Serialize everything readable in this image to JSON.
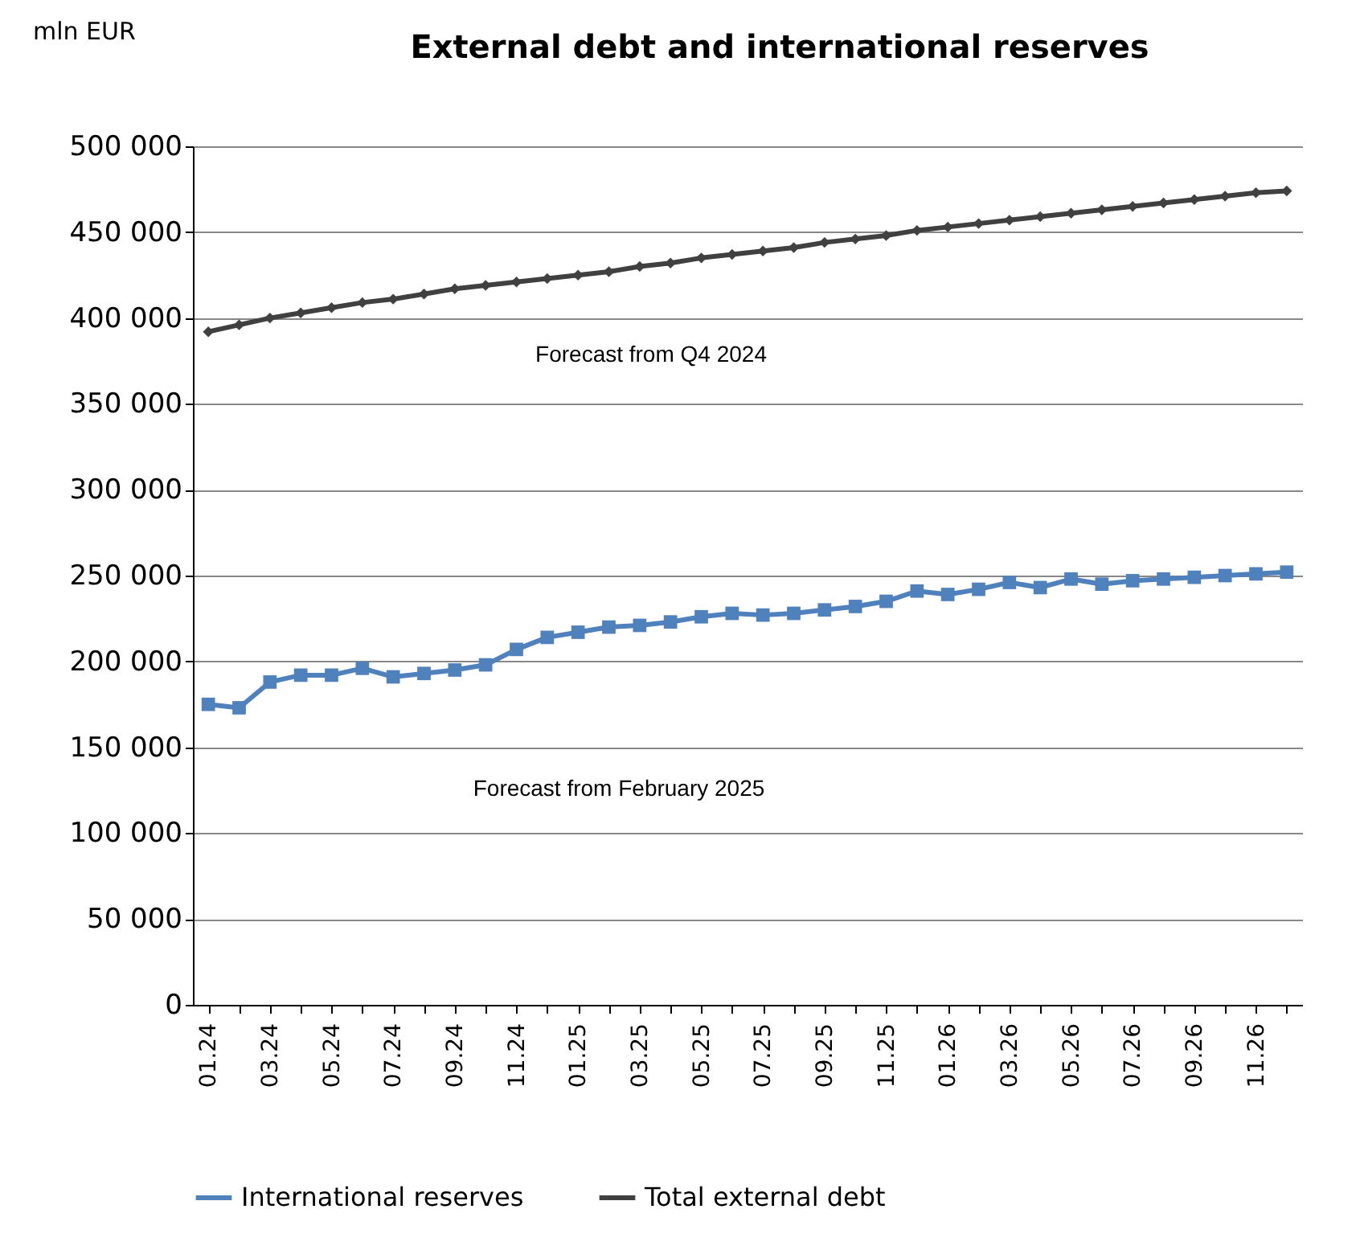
{
  "chart_data": {
    "type": "line",
    "title": "External debt and international reserves",
    "ylabel": "mln EUR",
    "categories": [
      "01.24",
      null,
      "03.24",
      null,
      "05.24",
      null,
      "07.24",
      null,
      "09.24",
      null,
      "11.24",
      null,
      "01.25",
      null,
      "03.25",
      null,
      "05.25",
      null,
      "07.25",
      null,
      "09.25",
      null,
      "11.25",
      null,
      "01.26",
      null,
      "03.26",
      null,
      "05.26",
      null,
      "07.26",
      null,
      "09.26",
      null,
      "11.26",
      null
    ],
    "series": [
      {
        "name": "International reserves",
        "color": "#4f81bd",
        "marker": "square",
        "values": [
          175000,
          173000,
          188000,
          192000,
          192000,
          196000,
          191000,
          193000,
          195000,
          198000,
          207000,
          214000,
          217000,
          220000,
          221000,
          223000,
          226000,
          228000,
          227000,
          228000,
          230000,
          232000,
          235000,
          241000,
          239000,
          242000,
          246000,
          243000,
          248000,
          245000,
          247000,
          248000,
          249000,
          250000,
          251000,
          252000
        ]
      },
      {
        "name": "Total external debt",
        "color": "#404040",
        "marker": "diamond",
        "values": [
          392000,
          396000,
          400000,
          403000,
          406000,
          409000,
          411000,
          414000,
          417000,
          419000,
          421000,
          423000,
          425000,
          427000,
          430000,
          432000,
          435000,
          437000,
          439000,
          441000,
          444000,
          446000,
          448000,
          451000,
          453000,
          455000,
          457000,
          459000,
          461000,
          463000,
          465000,
          467000,
          469000,
          471000,
          473000,
          474000
        ]
      }
    ],
    "ylim": [
      0,
      500000
    ],
    "yticks": [
      {
        "value": 0,
        "label": "0"
      },
      {
        "value": 50000,
        "label": "50 000"
      },
      {
        "value": 100000,
        "label": "100 000"
      },
      {
        "value": 150000,
        "label": "150 000"
      },
      {
        "value": 200000,
        "label": "200 000"
      },
      {
        "value": 250000,
        "label": "250 000"
      },
      {
        "value": 300000,
        "label": "300 000"
      },
      {
        "value": 350000,
        "label": "350 000"
      },
      {
        "value": 400000,
        "label": "400 000"
      },
      {
        "value": 450000,
        "label": "450 000"
      },
      {
        "value": 500000,
        "label": "500 000"
      }
    ],
    "grid": "y",
    "legend": "bottom",
    "line_style": "solid",
    "annotations": [
      "Forecast from Q4 2024",
      "Forecast from February 2025"
    ]
  }
}
